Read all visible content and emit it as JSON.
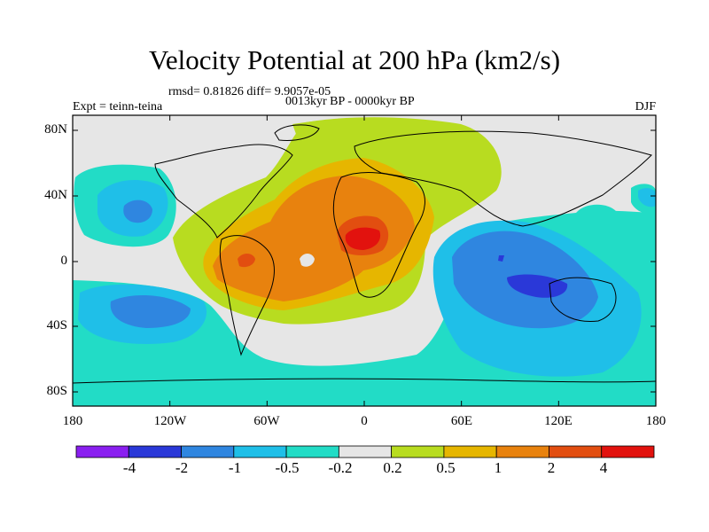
{
  "title": "Velocity Potential at 200 hPa (km2/s)",
  "subtitle_stats": "rmsd= 0.81826 diff= 9.9057e-05",
  "subtitle_period": "0013kyr BP - 0000kyr BP",
  "experiment": "Expt = teinn-teina",
  "season": "DJF",
  "lat_ticks": [
    "80N",
    "40N",
    "0",
    "40S",
    "80S"
  ],
  "lon_ticks": [
    "180",
    "120W",
    "60W",
    "0",
    "60E",
    "120E",
    "180"
  ],
  "colorbar": {
    "labels": [
      "-4",
      "-2",
      "-1",
      "-0.5",
      "-0.2",
      "0.2",
      "0.5",
      "1",
      "2",
      "4"
    ],
    "colors": [
      "#8a1ff0",
      "#2a38d8",
      "#2f86e0",
      "#1fbfe8",
      "#22dcc6",
      "#e6e6e6",
      "#b8dc20",
      "#e6b600",
      "#e8820e",
      "#e24e10",
      "#e2120e"
    ]
  },
  "palette": {
    "neutral": "#e6e6e6",
    "teal": "#22dcc6",
    "cyan": "#1fbfe8",
    "blue": "#2f86e0",
    "dark_blue": "#2a38d8",
    "lime": "#b8dc20",
    "yellow": "#e6b600",
    "orange": "#e8820e",
    "dark_orange": "#e24e10",
    "red": "#e2120e"
  }
}
